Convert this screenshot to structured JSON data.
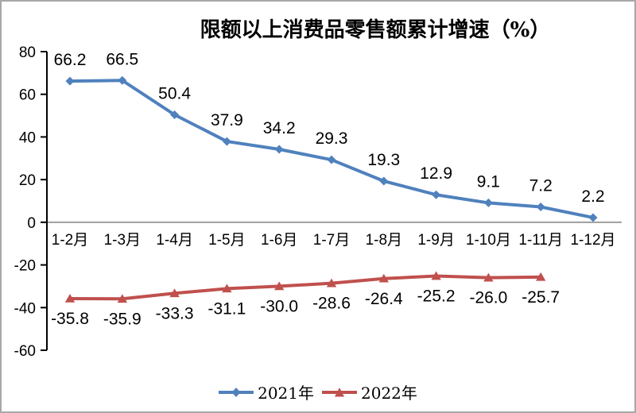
{
  "chart_data": {
    "type": "line",
    "title": "限额以上消费品零售额累计增速（%）",
    "categories": [
      "1-2月",
      "1-3月",
      "1-4月",
      "1-5月",
      "1-6月",
      "1-7月",
      "1-8月",
      "1-9月",
      "1-10月",
      "1-11月",
      "1-12月"
    ],
    "series": [
      {
        "name": "2021年",
        "color": "#4F81BD",
        "marker": "diamond",
        "label_position": "above",
        "values": [
          66.2,
          66.5,
          50.4,
          37.9,
          34.2,
          29.3,
          19.3,
          12.9,
          9.1,
          7.2,
          2.2
        ]
      },
      {
        "name": "2022年",
        "color": "#C0504D",
        "marker": "triangle",
        "label_position": "below",
        "values": [
          -35.8,
          -35.9,
          -33.3,
          -31.1,
          -30.0,
          -28.6,
          -26.4,
          -25.2,
          -26.0,
          -25.7
        ]
      }
    ],
    "ylim": [
      -60,
      80
    ],
    "yticks": [
      80,
      60,
      40,
      20,
      0,
      -20,
      -40,
      -60
    ],
    "xlabel": "",
    "ylabel": "",
    "grid": "zero-line-only",
    "legend_position": "bottom",
    "colors": {
      "axis": "#000000",
      "zero_line": "#9e9e9e",
      "labels": "#000000",
      "frame_border": "#a8a8a8",
      "background": "#ffffff"
    }
  }
}
